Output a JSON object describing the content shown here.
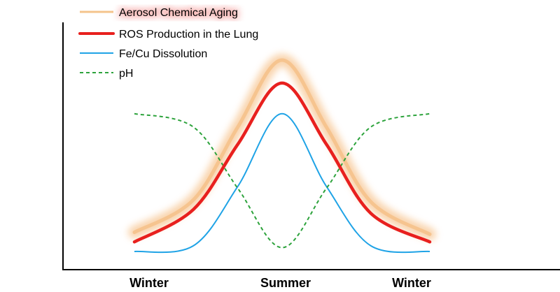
{
  "chart_data": {
    "type": "line",
    "categories": [
      "Winter",
      "Summer",
      "Winter"
    ],
    "title": "",
    "xlabel": "",
    "ylabel": "",
    "grid": false,
    "legend_position": "top-left",
    "series": [
      {
        "key": "aging",
        "name": "Aerosol Chemical Aging",
        "color": "#F4B16B",
        "style": "glow",
        "values": [
          [
            0,
            0.1
          ],
          [
            0.2,
            0.27
          ],
          [
            0.35,
            0.65
          ],
          [
            0.5,
            1.0
          ],
          [
            0.65,
            0.65
          ],
          [
            0.8,
            0.26
          ],
          [
            1,
            0.09
          ]
        ]
      },
      {
        "key": "ros",
        "name": "ROS Production in the Lung",
        "color": "#E8201E",
        "style": "solid-thick",
        "values": [
          [
            0,
            0.05
          ],
          [
            0.2,
            0.22
          ],
          [
            0.35,
            0.56
          ],
          [
            0.5,
            0.88
          ],
          [
            0.65,
            0.56
          ],
          [
            0.8,
            0.2
          ],
          [
            1,
            0.05
          ]
        ]
      },
      {
        "key": "fecu",
        "name": "Fe/Cu Dissolution",
        "color": "#1FA3E6",
        "style": "solid",
        "values": [
          [
            0,
            0.0
          ],
          [
            0.2,
            0.03
          ],
          [
            0.35,
            0.34
          ],
          [
            0.5,
            0.72
          ],
          [
            0.65,
            0.34
          ],
          [
            0.8,
            0.03
          ],
          [
            1,
            0.0
          ]
        ]
      },
      {
        "key": "ph",
        "name": "pH",
        "color": "#2DA33C",
        "style": "dashed",
        "values": [
          [
            0,
            0.72
          ],
          [
            0.2,
            0.65
          ],
          [
            0.35,
            0.33
          ],
          [
            0.5,
            0.02
          ],
          [
            0.65,
            0.33
          ],
          [
            0.8,
            0.65
          ],
          [
            1,
            0.72
          ]
        ]
      }
    ]
  }
}
